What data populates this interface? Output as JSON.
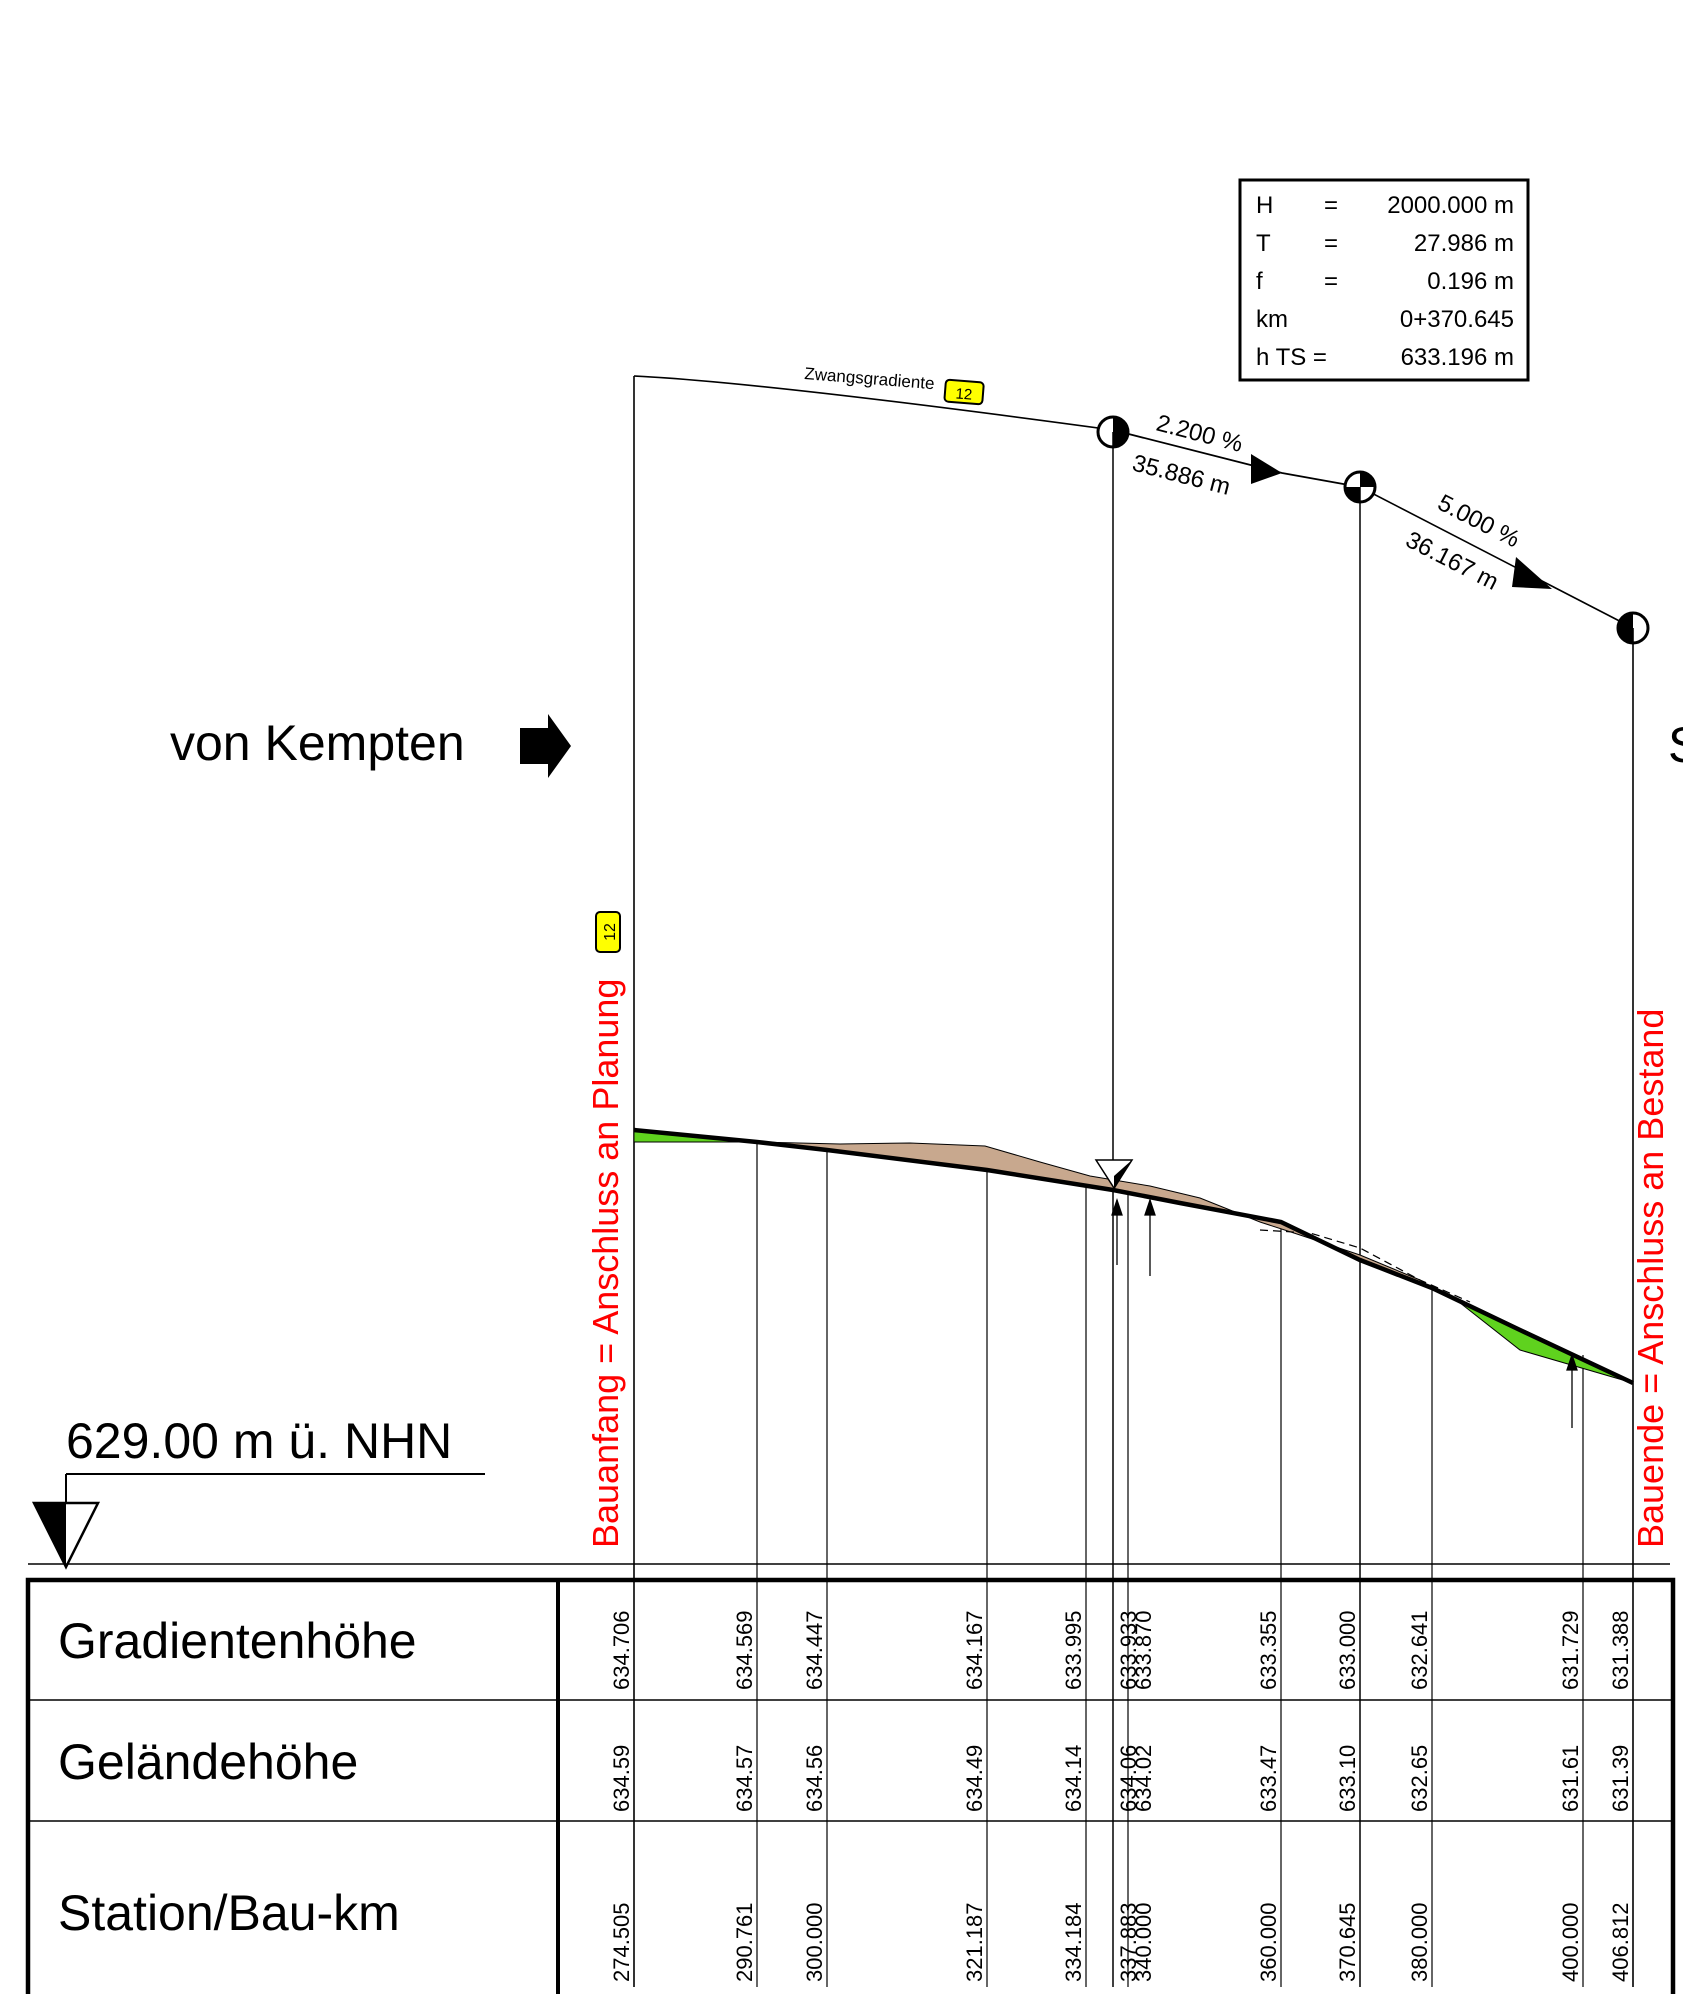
{
  "curve_box": {
    "rows": [
      {
        "key": "H",
        "eq": "=",
        "value": "2000.000 m"
      },
      {
        "key": "T",
        "eq": "=",
        "value": "27.986 m"
      },
      {
        "key": "f",
        "eq": "=",
        "value": "0.196 m"
      },
      {
        "key": "km",
        "eq": "",
        "value": "0+370.645"
      },
      {
        "key": "h TS =",
        "eq": "",
        "value": "633.196 m"
      }
    ]
  },
  "profile": {
    "zwangsgradiente_label": "Zwangsgradiente",
    "badge_12": "12",
    "grade1_percent": "2.200 %",
    "grade1_length": "35.886 m",
    "grade2_percent": "5.000 %",
    "grade2_length": "36.167 m",
    "direction_label": "von Kempten",
    "cut_off_letter": "S",
    "bauanfang_label": "Bauanfang = Anschluss an Planung",
    "bauende_label": "Bauende = Anschluss an Bestand",
    "datum_label": "629.00 m ü. NHN"
  },
  "colors": {
    "terrain_fill": "#c8a88e",
    "green_fill": "#5fd21e",
    "red_text": "#ff0000",
    "badge_yellow": "#ffff00"
  },
  "table": {
    "headers": [
      "Gradientenhöhe",
      "Geländehöhe",
      "Station/Bau-km"
    ],
    "stations": [
      {
        "gradient": "634.706",
        "terrain": "634.59",
        "station": "274.505"
      },
      {
        "gradient": "634.569",
        "terrain": "634.57",
        "station": "290.761"
      },
      {
        "gradient": "634.447",
        "terrain": "634.56",
        "station": "300.000"
      },
      {
        "gradient": "634.167",
        "terrain": "634.49",
        "station": "321.187"
      },
      {
        "gradient": "633.995",
        "terrain": "634.14",
        "station": "334.184"
      },
      {
        "gradient": "633.933",
        "terrain": "634.06",
        "station": "337.883"
      },
      {
        "gradient": "633.870",
        "terrain": "634.02",
        "station": "340.000"
      },
      {
        "gradient": "633.355",
        "terrain": "633.47",
        "station": "360.000"
      },
      {
        "gradient": "633.000",
        "terrain": "633.10",
        "station": "370.645"
      },
      {
        "gradient": "632.641",
        "terrain": "632.65",
        "station": "380.000"
      },
      {
        "gradient": "631.729",
        "terrain": "631.61",
        "station": "400.000"
      },
      {
        "gradient": "631.388",
        "terrain": "631.39",
        "station": "406.812"
      }
    ]
  }
}
